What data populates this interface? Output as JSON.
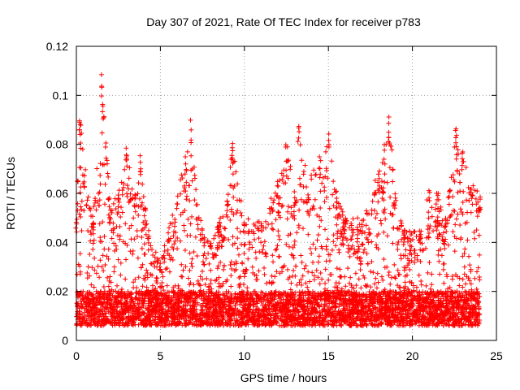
{
  "chart_data": {
    "type": "scatter",
    "title": "Day 307 of 2021, Rate Of TEC Index for receiver p783",
    "xlabel": "GPS time / hours",
    "ylabel": "ROTI / TECUs",
    "xlim": [
      0,
      25
    ],
    "ylim": [
      0,
      0.12
    ],
    "x_ticks": [
      0,
      5,
      10,
      15,
      20,
      25
    ],
    "x_tick_labels": [
      "0",
      "5",
      "10",
      "15",
      "20",
      "25"
    ],
    "y_ticks": [
      0,
      0.02,
      0.04,
      0.06,
      0.08,
      0.1,
      0.12
    ],
    "y_tick_labels": [
      "0",
      "0.02",
      "0.04",
      "0.06",
      "0.08",
      "0.1",
      "0.12"
    ],
    "grid": true,
    "marker": "+",
    "marker_color": "#ff0000",
    "sample_count": 5200,
    "baseline_range": [
      0.006,
      0.02
    ],
    "envelope": [
      {
        "x": 0.0,
        "y": 0.05
      },
      {
        "x": 0.2,
        "y": 0.094
      },
      {
        "x": 0.5,
        "y": 0.07
      },
      {
        "x": 1.0,
        "y": 0.05
      },
      {
        "x": 1.5,
        "y": 0.111
      },
      {
        "x": 2.0,
        "y": 0.055
      },
      {
        "x": 2.5,
        "y": 0.06
      },
      {
        "x": 3.0,
        "y": 0.079
      },
      {
        "x": 3.5,
        "y": 0.06
      },
      {
        "x": 3.8,
        "y": 0.076
      },
      {
        "x": 4.3,
        "y": 0.045
      },
      {
        "x": 5.0,
        "y": 0.032
      },
      {
        "x": 5.5,
        "y": 0.046
      },
      {
        "x": 6.0,
        "y": 0.06
      },
      {
        "x": 6.5,
        "y": 0.076
      },
      {
        "x": 6.8,
        "y": 0.09
      },
      {
        "x": 7.5,
        "y": 0.045
      },
      {
        "x": 8.0,
        "y": 0.04
      },
      {
        "x": 8.5,
        "y": 0.05
      },
      {
        "x": 9.0,
        "y": 0.06
      },
      {
        "x": 9.3,
        "y": 0.081
      },
      {
        "x": 10.0,
        "y": 0.05
      },
      {
        "x": 11.0,
        "y": 0.05
      },
      {
        "x": 12.0,
        "y": 0.065
      },
      {
        "x": 12.5,
        "y": 0.082
      },
      {
        "x": 13.0,
        "y": 0.06
      },
      {
        "x": 13.2,
        "y": 0.092
      },
      {
        "x": 13.8,
        "y": 0.065
      },
      {
        "x": 14.5,
        "y": 0.075
      },
      {
        "x": 15.0,
        "y": 0.085
      },
      {
        "x": 15.5,
        "y": 0.06
      },
      {
        "x": 16.0,
        "y": 0.05
      },
      {
        "x": 17.0,
        "y": 0.05
      },
      {
        "x": 18.0,
        "y": 0.07
      },
      {
        "x": 18.6,
        "y": 0.093
      },
      {
        "x": 19.0,
        "y": 0.06
      },
      {
        "x": 19.5,
        "y": 0.045
      },
      {
        "x": 20.5,
        "y": 0.045
      },
      {
        "x": 21.0,
        "y": 0.063
      },
      {
        "x": 21.5,
        "y": 0.06
      },
      {
        "x": 22.0,
        "y": 0.05
      },
      {
        "x": 22.6,
        "y": 0.088
      },
      {
        "x": 23.0,
        "y": 0.078
      },
      {
        "x": 23.5,
        "y": 0.065
      },
      {
        "x": 24.0,
        "y": 0.06
      }
    ]
  }
}
